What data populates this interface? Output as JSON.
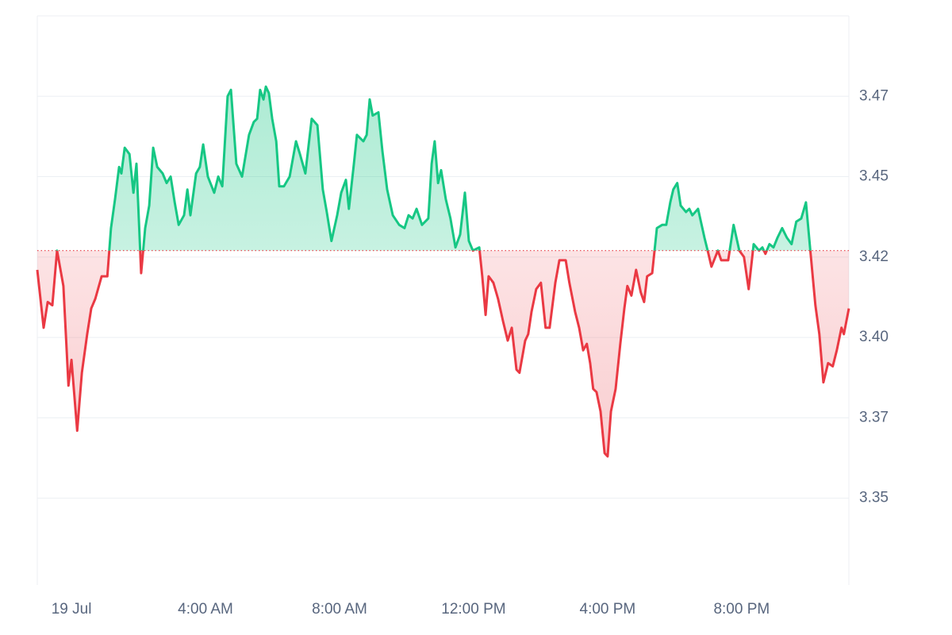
{
  "chart_data": {
    "type": "line",
    "x": [
      -1.02,
      -0.83,
      -0.71,
      -0.57,
      -0.43,
      -0.24,
      -0.09,
      0,
      0.17,
      0.31,
      0.47,
      0.59,
      0.71,
      0.9,
      1.07,
      1.18,
      1.3,
      1.42,
      1.49,
      1.59,
      1.73,
      1.85,
      1.94,
      2.08,
      2.2,
      2.32,
      2.44,
      2.56,
      2.72,
      2.84,
      2.96,
      3.08,
      3.2,
      3.36,
      3.46,
      3.55,
      3.72,
      3.83,
      3.93,
      4.07,
      4.26,
      4.38,
      4.5,
      4.66,
      4.76,
      4.92,
      5.09,
      5.3,
      5.44,
      5.54,
      5.63,
      5.73,
      5.8,
      5.89,
      5.99,
      6.11,
      6.2,
      6.34,
      6.51,
      6.7,
      6.82,
      6.98,
      7.17,
      7.34,
      7.5,
      7.62,
      7.76,
      7.93,
      8.05,
      8.19,
      8.28,
      8.43,
      8.52,
      8.71,
      8.81,
      8.9,
      8.99,
      9.16,
      9.28,
      9.42,
      9.59,
      9.78,
      9.94,
      10.06,
      10.18,
      10.3,
      10.46,
      10.65,
      10.75,
      10.84,
      10.94,
      11.03,
      11.17,
      11.31,
      11.46,
      11.6,
      11.74,
      11.86,
      11.98,
      12.17,
      12.26,
      12.36,
      12.45,
      12.59,
      12.73,
      12.88,
      13.02,
      13.14,
      13.28,
      13.37,
      13.54,
      13.63,
      13.73,
      13.87,
      14.01,
      14.15,
      14.27,
      14.44,
      14.56,
      14.75,
      14.86,
      15.03,
      15.15,
      15.27,
      15.38,
      15.48,
      15.57,
      15.67,
      15.79,
      15.91,
      16.0,
      16.1,
      16.24,
      16.38,
      16.5,
      16.59,
      16.71,
      16.85,
      16.99,
      17.09,
      17.18,
      17.33,
      17.47,
      17.63,
      17.75,
      17.87,
      17.96,
      18.08,
      18.18,
      18.34,
      18.44,
      18.53,
      18.7,
      18.89,
      19.01,
      19.1,
      19.29,
      19.39,
      19.6,
      19.76,
      19.93,
      20.07,
      20.21,
      20.36,
      20.52,
      20.62,
      20.71,
      20.83,
      20.95,
      21.07,
      21.21,
      21.35,
      21.49,
      21.63,
      21.78,
      21.92,
      22.06,
      22.2,
      22.32,
      22.44,
      22.58,
      22.72,
      22.84,
      22.98,
      23.05,
      23.2
    ],
    "values": [
      3.421,
      3.403,
      3.411,
      3.41,
      3.427,
      3.416,
      3.385,
      3.393,
      3.371,
      3.389,
      3.401,
      3.409,
      3.412,
      3.419,
      3.419,
      3.434,
      3.443,
      3.453,
      3.451,
      3.459,
      3.457,
      3.445,
      3.454,
      3.42,
      3.434,
      3.441,
      3.459,
      3.453,
      3.451,
      3.448,
      3.45,
      3.442,
      3.435,
      3.438,
      3.446,
      3.438,
      3.451,
      3.453,
      3.46,
      3.45,
      3.445,
      3.45,
      3.447,
      3.475,
      3.477,
      3.454,
      3.45,
      3.463,
      3.467,
      3.468,
      3.477,
      3.474,
      3.478,
      3.476,
      3.468,
      3.461,
      3.447,
      3.447,
      3.45,
      3.461,
      3.457,
      3.451,
      3.468,
      3.466,
      3.446,
      3.439,
      3.43,
      3.438,
      3.445,
      3.449,
      3.44,
      3.454,
      3.463,
      3.461,
      3.463,
      3.474,
      3.469,
      3.47,
      3.458,
      3.446,
      3.438,
      3.435,
      3.434,
      3.438,
      3.437,
      3.44,
      3.435,
      3.437,
      3.454,
      3.461,
      3.448,
      3.452,
      3.443,
      3.437,
      3.428,
      3.432,
      3.445,
      3.43,
      3.427,
      3.428,
      3.419,
      3.407,
      3.419,
      3.417,
      3.412,
      3.405,
      3.399,
      3.403,
      3.39,
      3.389,
      3.399,
      3.401,
      3.408,
      3.415,
      3.417,
      3.403,
      3.403,
      3.417,
      3.424,
      3.424,
      3.417,
      3.408,
      3.403,
      3.396,
      3.398,
      3.392,
      3.384,
      3.383,
      3.377,
      3.364,
      3.363,
      3.377,
      3.384,
      3.398,
      3.409,
      3.416,
      3.413,
      3.421,
      3.414,
      3.411,
      3.419,
      3.42,
      3.434,
      3.435,
      3.435,
      3.442,
      3.446,
      3.448,
      3.441,
      3.439,
      3.44,
      3.438,
      3.44,
      3.431,
      3.426,
      3.422,
      3.427,
      3.424,
      3.424,
      3.435,
      3.427,
      3.425,
      3.415,
      3.429,
      3.427,
      3.428,
      3.426,
      3.429,
      3.428,
      3.431,
      3.434,
      3.431,
      3.429,
      3.436,
      3.437,
      3.442,
      3.426,
      3.41,
      3.401,
      3.386,
      3.392,
      3.391,
      3.396,
      3.403,
      3.401,
      3.409
    ],
    "baseline": 3.427,
    "up_color": "#16c784",
    "down_color": "#ea3943",
    "xlim": [
      -1.02,
      23.2
    ],
    "xticks": [
      {
        "value": 0,
        "label": "19 Jul"
      },
      {
        "value": 4,
        "label": "4:00 AM"
      },
      {
        "value": 8,
        "label": "8:00 AM"
      },
      {
        "value": 12,
        "label": "12:00 PM"
      },
      {
        "value": 16,
        "label": "4:00 PM"
      },
      {
        "value": 20,
        "label": "8:00 PM"
      }
    ],
    "ylim": [
      3.323,
      3.5
    ],
    "yticks": [
      3.35,
      {
        "value": 3.375,
        "label": "3.37"
      },
      {
        "value": 3.4,
        "label": "3.40"
      },
      {
        "value": 3.425,
        "label": "3.42"
      },
      3.45,
      {
        "value": 3.475,
        "label": "3.47"
      }
    ],
    "grid": true
  }
}
